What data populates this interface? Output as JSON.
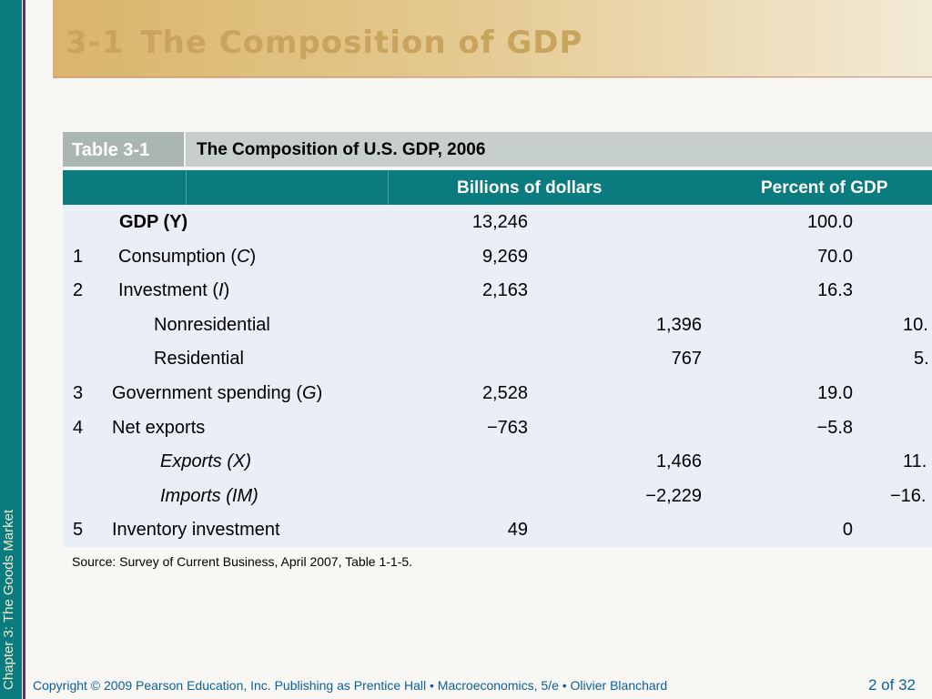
{
  "slide": {
    "title_number": "3-1",
    "title_text": "The Composition of GDP",
    "side_label": "Chapter 3:  The Goods Market"
  },
  "table": {
    "caption_number": "Table 3-1",
    "caption_title": "The Composition of U.S. GDP, 2006",
    "col_billions": "Billions of dollars",
    "col_percent": "Percent of GDP",
    "rows": [
      {
        "num": "",
        "label": "GDP (Y)",
        "b_main": "13,246",
        "b_sub": "",
        "p_main": "100.0",
        "p_sub": ""
      },
      {
        "num": "1",
        "label": "Consumption (C)",
        "b_main": "9,269",
        "b_sub": "",
        "p_main": "70.0",
        "p_sub": ""
      },
      {
        "num": "2",
        "label": "Investment (I)",
        "b_main": "2,163",
        "b_sub": "",
        "p_main": "16.3",
        "p_sub": ""
      },
      {
        "num": "",
        "label": "Nonresidential",
        "b_main": "",
        "b_sub": "1,396",
        "p_main": "",
        "p_sub": "10."
      },
      {
        "num": "",
        "label": "Residential",
        "b_main": "",
        "b_sub": "767",
        "p_main": "",
        "p_sub": "5."
      },
      {
        "num": "3",
        "label": "Government spending (G)",
        "b_main": "2,528",
        "b_sub": "",
        "p_main": "19.0",
        "p_sub": ""
      },
      {
        "num": "4",
        "label": "Net exports",
        "b_main": "−763",
        "b_sub": "",
        "p_main": "−5.8",
        "p_sub": ""
      },
      {
        "num": "",
        "label": "Exports (X)",
        "b_main": "",
        "b_sub": "1,466",
        "p_main": "",
        "p_sub": "11."
      },
      {
        "num": "",
        "label": "Imports (IM)",
        "b_main": "",
        "b_sub": "−2,229",
        "p_main": "",
        "p_sub": "−16."
      },
      {
        "num": "5",
        "label": "Inventory investment",
        "b_main": "49",
        "b_sub": "",
        "p_main": "0",
        "p_sub": ""
      }
    ],
    "source": "Source: Survey of Current Business, April 2007, Table 1-1-5."
  },
  "footer": {
    "text": "Copyright © 2009 Pearson Education, Inc. Publishing as Prentice Hall  •  Macroeconomics, 5/e  •  Olivier Blanchard",
    "page": "2 of 32"
  }
}
